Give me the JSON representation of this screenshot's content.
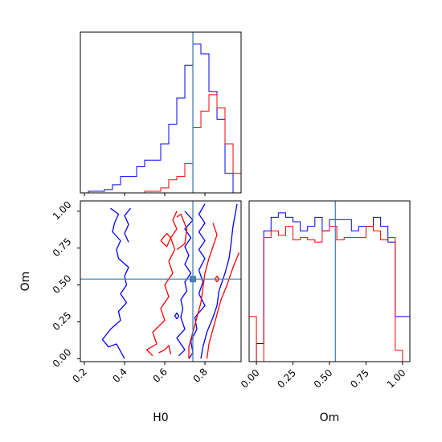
{
  "chart_data": {
    "type": "corner",
    "parameters": [
      "H0",
      "Om"
    ],
    "truth": {
      "H0": 0.74,
      "Om": 0.54
    },
    "colors": {
      "blue": "#0000ff",
      "red": "#ff0000",
      "truth": "#4682b4"
    },
    "series_colors": [
      "#0000ff",
      "#ff0000"
    ],
    "h0_hist": {
      "xlim": [
        0.18,
        0.98
      ],
      "bin_edges": [
        0.18,
        0.22,
        0.26,
        0.3,
        0.34,
        0.38,
        0.42,
        0.46,
        0.5,
        0.54,
        0.58,
        0.62,
        0.66,
        0.7,
        0.74,
        0.78,
        0.82,
        0.86,
        0.9,
        0.94,
        0.98
      ],
      "series": [
        {
          "counts": [
            0,
            1,
            1,
            2,
            5,
            10,
            10,
            16,
            20,
            20,
            30,
            42,
            58,
            78,
            91,
            85,
            62,
            45,
            12,
            0
          ]
        },
        {
          "counts": [
            0,
            0,
            0,
            0,
            0,
            0,
            0,
            0,
            1,
            1,
            3,
            8,
            10,
            18,
            40,
            50,
            60,
            52,
            30,
            12
          ]
        }
      ]
    },
    "om_hist": {
      "xlim": [
        -0.05,
        1.05
      ],
      "xticks": [
        "0.00",
        "0.25",
        "0.50",
        "0.75",
        "1.00"
      ],
      "xlabel": "Om",
      "bin_edges": [
        -0.05,
        0.0,
        0.05,
        0.1,
        0.15,
        0.2,
        0.25,
        0.3,
        0.35,
        0.4,
        0.45,
        0.5,
        0.55,
        0.6,
        0.65,
        0.7,
        0.75,
        0.8,
        0.85,
        0.9,
        0.95,
        1.0,
        1.05
      ],
      "series": [
        {
          "counts": [
            0,
            8,
            58,
            64,
            66,
            64,
            62,
            58,
            60,
            64,
            58,
            63,
            63,
            63,
            58,
            60,
            60,
            64,
            60,
            53,
            20,
            20
          ]
        },
        {
          "counts": [
            20,
            0,
            55,
            58,
            56,
            60,
            54,
            55,
            54,
            53,
            58,
            60,
            54,
            55,
            55,
            55,
            60,
            58,
            54,
            55,
            5,
            0
          ]
        }
      ]
    },
    "scatter": {
      "xlim": [
        0.18,
        0.98
      ],
      "ylim": [
        -0.02,
        1.07
      ],
      "xticks": [
        "0.2",
        "0.4",
        "0.6",
        "0.8"
      ],
      "yticks": [
        "0.00",
        "0.25",
        "0.50",
        "0.75",
        "1.00"
      ],
      "xlabel": "H0",
      "ylabel": "Om",
      "contours": [
        {
          "series": 0,
          "points": [
            [
              0.33,
              1.02
            ],
            [
              0.37,
              0.98
            ],
            [
              0.35,
              0.92
            ],
            [
              0.34,
              0.86
            ],
            [
              0.38,
              0.8
            ],
            [
              0.36,
              0.74
            ],
            [
              0.37,
              0.68
            ],
            [
              0.42,
              0.62
            ],
            [
              0.4,
              0.56
            ],
            [
              0.41,
              0.5
            ],
            [
              0.38,
              0.44
            ],
            [
              0.41,
              0.38
            ],
            [
              0.37,
              0.32
            ],
            [
              0.38,
              0.26
            ],
            [
              0.33,
              0.2
            ],
            [
              0.29,
              0.13
            ],
            [
              0.32,
              0.08
            ],
            [
              0.36,
              0.1
            ],
            [
              0.4,
              0.0
            ]
          ]
        },
        {
          "series": 0,
          "points": [
            [
              0.43,
              1.02
            ],
            [
              0.4,
              0.97
            ],
            [
              0.42,
              0.91
            ],
            [
              0.4,
              0.85
            ],
            [
              0.42,
              0.79
            ]
          ]
        },
        {
          "series": 0,
          "points": [
            [
              0.7,
              1.0
            ],
            [
              0.74,
              0.94
            ],
            [
              0.7,
              0.88
            ],
            [
              0.73,
              0.82
            ],
            [
              0.7,
              0.76
            ],
            [
              0.72,
              0.7
            ],
            [
              0.7,
              0.64
            ],
            [
              0.73,
              0.58
            ],
            [
              0.7,
              0.52
            ],
            [
              0.71,
              0.46
            ],
            [
              0.68,
              0.4
            ],
            [
              0.69,
              0.34
            ],
            [
              0.68,
              0.28
            ],
            [
              0.7,
              0.2
            ],
            [
              0.66,
              0.14
            ],
            [
              0.7,
              0.06
            ],
            [
              0.67,
              0.02
            ]
          ]
        },
        {
          "series": 0,
          "points": [
            [
              0.8,
              1.05
            ],
            [
              0.77,
              0.98
            ],
            [
              0.8,
              0.92
            ],
            [
              0.77,
              0.86
            ],
            [
              0.8,
              0.8
            ],
            [
              0.77,
              0.74
            ],
            [
              0.8,
              0.68
            ],
            [
              0.77,
              0.6
            ],
            [
              0.79,
              0.52
            ],
            [
              0.77,
              0.44
            ],
            [
              0.8,
              0.36
            ],
            [
              0.75,
              0.28
            ],
            [
              0.76,
              0.2
            ],
            [
              0.73,
              0.12
            ],
            [
              0.74,
              0.04
            ],
            [
              0.72,
              0.0
            ]
          ]
        },
        {
          "series": 0,
          "points": [
            [
              0.96,
              1.05
            ],
            [
              0.94,
              0.9
            ],
            [
              0.93,
              0.78
            ],
            [
              0.92,
              0.68
            ],
            [
              0.9,
              0.58
            ],
            [
              0.87,
              0.46
            ],
            [
              0.86,
              0.36
            ],
            [
              0.84,
              0.28
            ],
            [
              0.81,
              0.18
            ],
            [
              0.79,
              0.08
            ],
            [
              0.78,
              0.0
            ]
          ]
        },
        {
          "series": 0,
          "points": [
            [
              0.66,
              0.27
            ],
            [
              0.67,
              0.29
            ],
            [
              0.66,
              0.31
            ],
            [
              0.65,
              0.29
            ],
            [
              0.66,
              0.27
            ]
          ]
        },
        {
          "series": 1,
          "points": [
            [
              0.66,
              1.0
            ],
            [
              0.64,
              0.94
            ],
            [
              0.66,
              0.88
            ],
            [
              0.63,
              0.82
            ],
            [
              0.65,
              0.74
            ],
            [
              0.62,
              0.66
            ],
            [
              0.64,
              0.58
            ],
            [
              0.6,
              0.5
            ],
            [
              0.62,
              0.42
            ],
            [
              0.58,
              0.34
            ],
            [
              0.6,
              0.26
            ],
            [
              0.54,
              0.18
            ],
            [
              0.56,
              0.1
            ],
            [
              0.51,
              0.06
            ],
            [
              0.54,
              0.02
            ]
          ]
        },
        {
          "series": 1,
          "points": [
            [
              0.57,
              0.04
            ],
            [
              0.6,
              0.06
            ],
            [
              0.62,
              0.09
            ],
            [
              0.63,
              0.03
            ]
          ]
        },
        {
          "series": 1,
          "points": [
            [
              0.66,
              0.74
            ],
            [
              0.7,
              0.78
            ],
            [
              0.71,
              0.88
            ],
            [
              0.68,
              0.98
            ],
            [
              0.66,
              0.96
            ]
          ]
        },
        {
          "series": 1,
          "points": [
            [
              0.58,
              0.8
            ],
            [
              0.61,
              0.85
            ],
            [
              0.63,
              0.82
            ],
            [
              0.61,
              0.76
            ],
            [
              0.58,
              0.8
            ]
          ]
        },
        {
          "series": 1,
          "points": [
            [
              0.84,
              0.92
            ],
            [
              0.86,
              0.84
            ],
            [
              0.84,
              0.76
            ],
            [
              0.82,
              0.68
            ],
            [
              0.8,
              0.58
            ],
            [
              0.79,
              0.48
            ],
            [
              0.78,
              0.38
            ],
            [
              0.76,
              0.28
            ],
            [
              0.74,
              0.18
            ],
            [
              0.72,
              0.08
            ],
            [
              0.72,
              0.0
            ]
          ]
        },
        {
          "series": 1,
          "points": [
            [
              0.97,
              0.72
            ],
            [
              0.94,
              0.62
            ],
            [
              0.91,
              0.5
            ],
            [
              0.88,
              0.4
            ],
            [
              0.86,
              0.3
            ],
            [
              0.84,
              0.2
            ],
            [
              0.82,
              0.1
            ],
            [
              0.81,
              0.0
            ]
          ]
        },
        {
          "series": 1,
          "points": [
            [
              0.86,
              0.52
            ],
            [
              0.87,
              0.54
            ],
            [
              0.86,
              0.56
            ],
            [
              0.85,
              0.54
            ],
            [
              0.86,
              0.52
            ]
          ]
        }
      ]
    }
  }
}
